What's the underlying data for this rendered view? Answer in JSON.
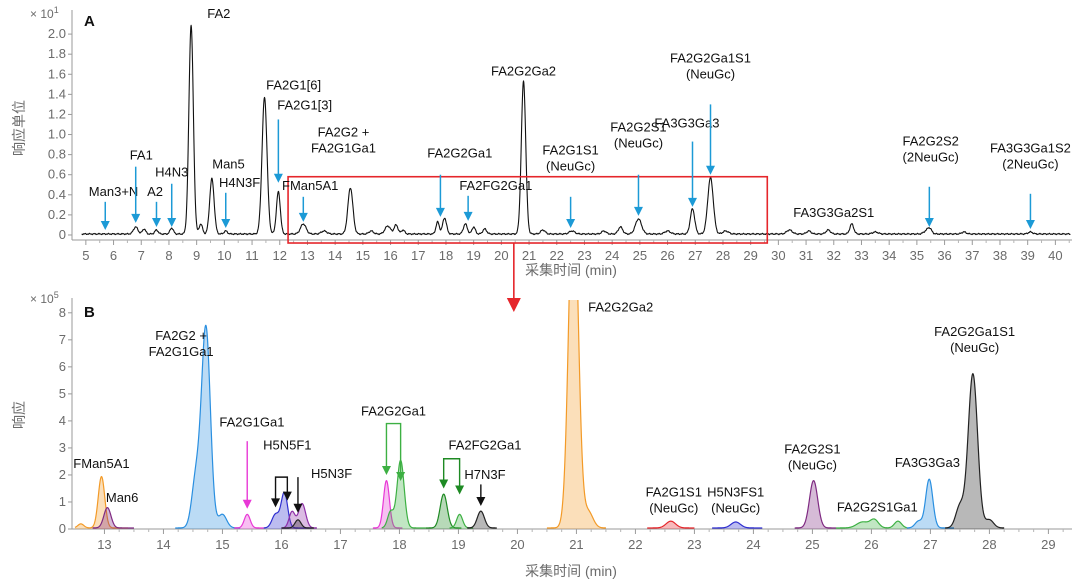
{
  "chart_data": [
    {
      "type": "line",
      "panel": "A",
      "scale": "× 10",
      "scale_exp": "1",
      "xlabel": "采集时间 (min)",
      "ylabel": "响应单位",
      "xlim": [
        4.5,
        40.6
      ],
      "ylim": [
        -0.05,
        2.2
      ],
      "xticks": [
        5,
        6,
        7,
        8,
        9,
        10,
        11,
        12,
        13,
        14,
        15,
        16,
        17,
        18,
        19,
        20,
        21,
        22,
        23,
        24,
        25,
        26,
        27,
        28,
        29,
        30,
        31,
        32,
        33,
        34,
        35,
        36,
        37,
        38,
        39,
        40
      ],
      "yticks": [
        "0",
        "0.2",
        "0.4",
        "0.6",
        "0.8",
        "1.0",
        "1.2",
        "1.4",
        "1.6",
        "1.8",
        "2.0"
      ],
      "peaks": [
        [
          6.8,
          0.07,
          0.08
        ],
        [
          7.1,
          0.05,
          0.06
        ],
        [
          7.55,
          0.04,
          0.06
        ],
        [
          8.1,
          0.06,
          0.06
        ],
        [
          8.8,
          2.08,
          0.08
        ],
        [
          9.15,
          0.1,
          0.06
        ],
        [
          9.55,
          0.55,
          0.08
        ],
        [
          10.05,
          0.03,
          0.06
        ],
        [
          11.45,
          1.36,
          0.09
        ],
        [
          11.95,
          0.42,
          0.07
        ],
        [
          12.85,
          0.1,
          0.1
        ],
        [
          13.6,
          0.03,
          0.1
        ],
        [
          14.55,
          0.46,
          0.09
        ],
        [
          15.3,
          0.03,
          0.08
        ],
        [
          15.9,
          0.08,
          0.1
        ],
        [
          16.2,
          0.09,
          0.07
        ],
        [
          16.45,
          0.04,
          0.06
        ],
        [
          17.7,
          0.12,
          0.06
        ],
        [
          17.95,
          0.16,
          0.07
        ],
        [
          18.7,
          0.1,
          0.07
        ],
        [
          19.0,
          0.07,
          0.06
        ],
        [
          19.4,
          0.05,
          0.07
        ],
        [
          20.8,
          1.52,
          0.08
        ],
        [
          21.5,
          0.04,
          0.08
        ],
        [
          22.55,
          0.03,
          0.1
        ],
        [
          23.7,
          0.03,
          0.08
        ],
        [
          24.3,
          0.07,
          0.08
        ],
        [
          24.95,
          0.15,
          0.11
        ],
        [
          26.0,
          0.03,
          0.1
        ],
        [
          26.9,
          0.25,
          0.08
        ],
        [
          27.55,
          0.56,
          0.1
        ],
        [
          28.1,
          0.03,
          0.1
        ],
        [
          30.4,
          0.04,
          0.1
        ],
        [
          31.1,
          0.03,
          0.08
        ],
        [
          31.8,
          0.04,
          0.08
        ],
        [
          32.65,
          0.1,
          0.07
        ],
        [
          33.5,
          0.02,
          0.1
        ],
        [
          35.3,
          0.02,
          0.08
        ],
        [
          35.45,
          0.06,
          0.08
        ],
        [
          36.7,
          0.02,
          0.08
        ],
        [
          39.1,
          0.02,
          0.08
        ]
      ],
      "annotations": [
        {
          "lines": [
            "FA2"
          ],
          "x": 8.8,
          "ax": 9.8,
          "ay": 2.16
        },
        {
          "lines": [
            "FA2G1[6]"
          ],
          "x": 11.45,
          "ax": 12.5,
          "ay": 1.45
        },
        {
          "lines": [
            "FA2G1[3]"
          ],
          "x": 11.95,
          "ax": 12.9,
          "ay": 1.25,
          "arrow": true,
          "atip": 0.52,
          "atail": 1.15
        },
        {
          "lines": [
            "Man3+N"
          ],
          "x": 5.7,
          "ax": 6.0,
          "ay": 0.39,
          "arrow": true,
          "atip": 0.05,
          "atail": 0.33
        },
        {
          "lines": [
            "FA1"
          ],
          "x": 6.8,
          "ax": 7.0,
          "ay": 0.75,
          "arrow": true,
          "atip": 0.12,
          "atail": 0.68
        },
        {
          "lines": [
            "A2"
          ],
          "x": 7.55,
          "ax": 7.5,
          "ay": 0.39,
          "arrow": true,
          "atip": 0.08,
          "atail": 0.33
        },
        {
          "lines": [
            "H4N3"
          ],
          "x": 8.1,
          "ax": 8.1,
          "ay": 0.58,
          "arrow": true,
          "atip": 0.08,
          "atail": 0.51
        },
        {
          "lines": [
            "Man5"
          ],
          "x": 9.55,
          "ax": 10.15,
          "ay": 0.66
        },
        {
          "lines": [
            "H4N3F"
          ],
          "x": 10.05,
          "ax": 10.55,
          "ay": 0.48,
          "arrow": true,
          "atip": 0.07,
          "atail": 0.42
        },
        {
          "lines": [
            "FMan5A1"
          ],
          "x": 12.85,
          "ax": 13.1,
          "ay": 0.45,
          "arrow": true,
          "atip": 0.13,
          "atail": 0.38
        },
        {
          "lines": [
            "FA2G2 +",
            "FA2G1Ga1"
          ],
          "x": 14.55,
          "ax": 14.3,
          "ay": 0.82
        },
        {
          "lines": [
            "FA2G2Ga1"
          ],
          "x": 17.8,
          "ax": 18.5,
          "ay": 0.77,
          "arrow": true,
          "atip": 0.18,
          "atail": 0.6
        },
        {
          "lines": [
            "FA2FG2Ga1"
          ],
          "x": 18.8,
          "ax": 19.8,
          "ay": 0.45,
          "arrow": true,
          "atip": 0.14,
          "atail": 0.39
        },
        {
          "lines": [
            "FA2G2Ga2"
          ],
          "x": 20.8,
          "ax": 20.8,
          "ay": 1.59
        },
        {
          "lines": [
            "FA2G1S1",
            "(NeuGc)"
          ],
          "x": 22.5,
          "ax": 22.5,
          "ay": 0.64,
          "arrow": true,
          "atip": 0.07,
          "atail": 0.38
        },
        {
          "lines": [
            "FA2G2S1",
            "(NeuGc)"
          ],
          "x": 24.95,
          "ax": 24.95,
          "ay": 0.87,
          "arrow": true,
          "atip": 0.19,
          "atail": 0.6
        },
        {
          "lines": [
            "FA3G3Ga3"
          ],
          "x": 26.9,
          "ax": 26.7,
          "ay": 1.07,
          "arrow": true,
          "atip": 0.28,
          "atail": 0.93
        },
        {
          "lines": [
            "FA2G2Ga1S1",
            "(NeuGc)"
          ],
          "x": 27.55,
          "ax": 27.55,
          "ay": 1.56,
          "arrow": true,
          "atip": 0.6,
          "atail": 1.3
        },
        {
          "lines": [
            "FA3G3Ga2S1"
          ],
          "x": 32.65,
          "ax": 32.0,
          "ay": 0.18
        },
        {
          "lines": [
            "FA2G2S2",
            "(2NeuGc)"
          ],
          "x": 35.45,
          "ax": 35.5,
          "ay": 0.73,
          "arrow": true,
          "atip": 0.08,
          "atail": 0.48
        },
        {
          "lines": [
            "FA3G3Ga1S2",
            "(2NeuGc)"
          ],
          "x": 39.1,
          "ax": 39.1,
          "ay": 0.66,
          "arrow": true,
          "atip": 0.06,
          "atail": 0.41
        }
      ],
      "zoom_box_x": [
        12.3,
        29.6
      ],
      "zoom_box_y": [
        -0.08,
        0.58
      ]
    },
    {
      "type": "area",
      "panel": "B",
      "scale": "× 10",
      "scale_exp": "5",
      "xlabel": "采集时间 (min)",
      "ylabel": "响应",
      "xlim": [
        12.45,
        29.4
      ],
      "ylim": [
        0,
        8.4
      ],
      "xticks": [
        13,
        14,
        15,
        16,
        17,
        18,
        19,
        20,
        21,
        22,
        23,
        24,
        25,
        26,
        27,
        28,
        29
      ],
      "yticks": [
        "0",
        "1",
        "2",
        "3",
        "4",
        "5",
        "6",
        "7",
        "8"
      ],
      "series": [
        {
          "name": "FMan5A1",
          "color": "#f39a27",
          "range": [
            12.5,
            13.4
          ],
          "peaks": [
            [
              12.95,
              1.9,
              0.055
            ],
            [
              12.6,
              0.15,
              0.05
            ]
          ]
        },
        {
          "name": "Man6",
          "color": "#7f2a82",
          "range": [
            12.8,
            13.5
          ],
          "peaks": [
            [
              13.05,
              0.75,
              0.06
            ]
          ]
        },
        {
          "name": "FA2G2 + FA2G1Ga1",
          "color": "#2a8fe0",
          "range": [
            14.2,
            15.3
          ],
          "peaks": [
            [
              14.72,
              7.4,
              0.075
            ],
            [
              14.55,
              1.8,
              0.07
            ],
            [
              15.0,
              0.5,
              0.07
            ]
          ]
        },
        {
          "name": "FA2G1Ga1",
          "color": "#e838d6",
          "range": [
            15.2,
            15.7
          ],
          "peaks": [
            [
              15.42,
              0.5,
              0.05
            ]
          ]
        },
        {
          "name": "H5N5F1",
          "color": "#2f2fd0",
          "range": [
            15.7,
            16.5
          ],
          "peaks": [
            [
              16.05,
              1.3,
              0.055
            ],
            [
              15.9,
              0.5,
              0.06
            ]
          ]
        },
        {
          "name": "H5N3F",
          "color": "#8e2fa8",
          "range": [
            16.0,
            16.6
          ],
          "peaks": [
            [
              16.35,
              0.9,
              0.06
            ],
            [
              16.18,
              0.6,
              0.05
            ]
          ]
        },
        {
          "name": "_black16",
          "color": "#222222",
          "range": [
            16.0,
            16.55
          ],
          "peaks": [
            [
              16.28,
              0.3,
              0.05
            ]
          ]
        },
        {
          "name": "FA2G2Ga1_a",
          "color": "#e838d6",
          "range": [
            17.55,
            18.05
          ],
          "peaks": [
            [
              17.78,
              1.75,
              0.05
            ]
          ]
        },
        {
          "name": "FA2G2Ga1",
          "color": "#3db043",
          "range": [
            17.7,
            18.45
          ],
          "peaks": [
            [
              18.02,
              2.5,
              0.06
            ],
            [
              17.85,
              0.6,
              0.05
            ]
          ]
        },
        {
          "name": "FA2FG2Ga1",
          "color": "#1e8a23",
          "range": [
            18.45,
            19.05
          ],
          "peaks": [
            [
              18.75,
              1.25,
              0.06
            ]
          ]
        },
        {
          "name": "FA2FG2Ga1_b",
          "color": "#3db043",
          "range": [
            18.85,
            19.25
          ],
          "peaks": [
            [
              19.02,
              0.5,
              0.05
            ]
          ]
        },
        {
          "name": "H7N3F",
          "color": "#222222",
          "range": [
            19.15,
            19.65
          ],
          "peaks": [
            [
              19.38,
              0.62,
              0.06
            ]
          ]
        },
        {
          "name": "FA2G2Ga2",
          "color": "#f39a27",
          "range": [
            20.5,
            21.5
          ],
          "peaks": [
            [
              20.95,
              13.0,
              0.08
            ],
            [
              21.2,
              0.6,
              0.08
            ]
          ]
        },
        {
          "name": "FA2G1S1 (NeuGc)",
          "color": "#e5262b",
          "range": [
            22.2,
            23.0
          ],
          "peaks": [
            [
              22.6,
              0.25,
              0.08
            ]
          ]
        },
        {
          "name": "H5N3FS1 (NeuGc)",
          "color": "#2f2fd0",
          "range": [
            23.3,
            24.15
          ],
          "peaks": [
            [
              23.7,
              0.22,
              0.08
            ]
          ]
        },
        {
          "name": "FA2G2S1 (NeuGc)",
          "color": "#7f2a82",
          "range": [
            24.7,
            25.4
          ],
          "peaks": [
            [
              25.02,
              1.75,
              0.07
            ]
          ]
        },
        {
          "name": "FA2G2S1Ga1",
          "color": "#3db043",
          "range": [
            25.4,
            26.6
          ],
          "peaks": [
            [
              25.85,
              0.22,
              0.1
            ],
            [
              26.05,
              0.3,
              0.07
            ],
            [
              26.45,
              0.25,
              0.06
            ]
          ]
        },
        {
          "name": "FA3G3Ga3",
          "color": "#2a8fe0",
          "range": [
            26.6,
            27.4
          ],
          "peaks": [
            [
              26.98,
              1.8,
              0.06
            ],
            [
              26.8,
              0.25,
              0.06
            ]
          ]
        },
        {
          "name": "FA2G2Ga1S1 (NeuGc)",
          "color": "#222222",
          "range": [
            27.25,
            28.25
          ],
          "peaks": [
            [
              27.72,
              5.7,
              0.08
            ],
            [
              27.5,
              0.8,
              0.07
            ],
            [
              28.0,
              0.3,
              0.07
            ]
          ]
        }
      ],
      "labels": [
        {
          "lines": [
            "FMan5A1"
          ],
          "color": "#f39a27",
          "x": 12.95,
          "y": 2.25
        },
        {
          "lines": [
            "Man6"
          ],
          "color": "#7f2a82",
          "x": 13.3,
          "y": 1.0
        },
        {
          "lines": [
            "FA2G2 +",
            "FA2G1Ga1"
          ],
          "color": "#2a8fe0",
          "x": 14.3,
          "y": 7.0
        },
        {
          "lines": [
            "FA2G1Ga1"
          ],
          "color": "#e838d6",
          "x": 15.5,
          "y": 3.8
        },
        {
          "lines": [
            "H5N5F1"
          ],
          "color": "#111111",
          "x": 16.1,
          "y": 2.95
        },
        {
          "lines": [
            "H5N3F"
          ],
          "color": "#8e2fa8",
          "x": 16.85,
          "y": 1.88
        },
        {
          "lines": [
            "FA2G2Ga1"
          ],
          "color": "#3db043",
          "x": 17.9,
          "y": 4.2
        },
        {
          "lines": [
            "FA2FG2Ga1"
          ],
          "color": "#1e8a23",
          "x": 19.45,
          "y": 2.95
        },
        {
          "lines": [
            "H7N3F"
          ],
          "color": "#111111",
          "x": 19.45,
          "y": 1.85
        },
        {
          "lines": [
            "FA2G2Ga2"
          ],
          "color": "#f39a27",
          "x": 21.75,
          "y": 8.05
        },
        {
          "lines": [
            "FA2G1S1",
            "(NeuGc)"
          ],
          "color": "#e5262b",
          "x": 22.65,
          "y": 1.2
        },
        {
          "lines": [
            "H5N3FS1",
            "(NeuGc)"
          ],
          "color": "#2f2fd0",
          "x": 23.7,
          "y": 1.2
        },
        {
          "lines": [
            "FA2G2S1",
            "(NeuGc)"
          ],
          "color": "#7f2a82",
          "x": 25.0,
          "y": 2.8
        },
        {
          "lines": [
            "FA2G2S1Ga1"
          ],
          "color": "#3db043",
          "x": 26.1,
          "y": 0.65
        },
        {
          "lines": [
            "FA3G3Ga3"
          ],
          "color": "#2a8fe0",
          "x": 26.95,
          "y": 2.3
        },
        {
          "lines": [
            "FA2G2Ga1S1",
            "(NeuGc)"
          ],
          "color": "#111111",
          "x": 27.75,
          "y": 7.15
        }
      ],
      "arrows": [
        {
          "color": "#e838d6",
          "x": 15.42,
          "tip": 0.75,
          "tail": 3.25
        },
        {
          "color": "#111111",
          "x": 15.9,
          "tip": 0.8,
          "tail": 1.92,
          "elbow": 16.1,
          "top": 1.92
        },
        {
          "color": "#111111",
          "x": 16.28,
          "tip": 0.6,
          "tail": 1.92
        },
        {
          "color": "#3db043",
          "x": 17.78,
          "tip": 2.0,
          "tail": 3.9,
          "bracket": 18.02
        },
        {
          "color": "#1e8a23",
          "x": 18.75,
          "tip": 1.5,
          "tail": 2.6,
          "bracket": 19.02
        },
        {
          "color": "#111111",
          "x": 19.38,
          "tip": 0.85,
          "tail": 1.65
        }
      ]
    }
  ]
}
